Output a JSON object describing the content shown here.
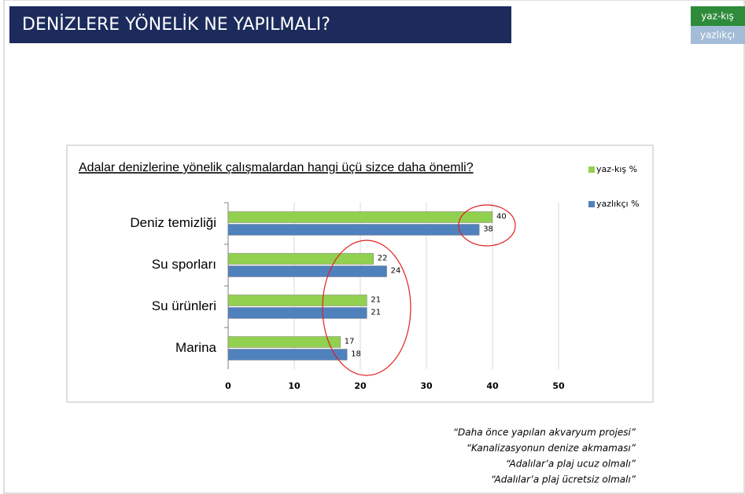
{
  "header": {
    "title": "DENİZLERE YÖNELİK NE YAPILMALI?"
  },
  "tags": [
    "yaz-kış",
    "yazlıkçı"
  ],
  "quotes": [
    "“Daha önce yapılan akvaryum projesi”",
    "“Kanalizasyonun denize akmaması”",
    "“Adalılar’a plaj ucuz olmalı”",
    "“Adalılar’a plaj ücretsiz olmalı”"
  ],
  "chart_data": {
    "type": "hbar",
    "title": "Adalar denizlerine yönelik çalışmalardan hangi üçü sizce daha önemli?",
    "categories": [
      "Deniz temizliği",
      "Su sporları",
      "Su ürünleri",
      "Marina"
    ],
    "series": [
      {
        "name": "yaz-kış %",
        "color": "#92d050",
        "values": [
          40,
          22,
          21,
          17
        ]
      },
      {
        "name": "yazlıkçı %",
        "color": "#4f81bd",
        "values": [
          38,
          24,
          21,
          18
        ]
      }
    ],
    "xlim": [
      0,
      50
    ],
    "xticks": [
      0,
      10,
      20,
      30,
      40,
      50
    ],
    "grid": true
  }
}
